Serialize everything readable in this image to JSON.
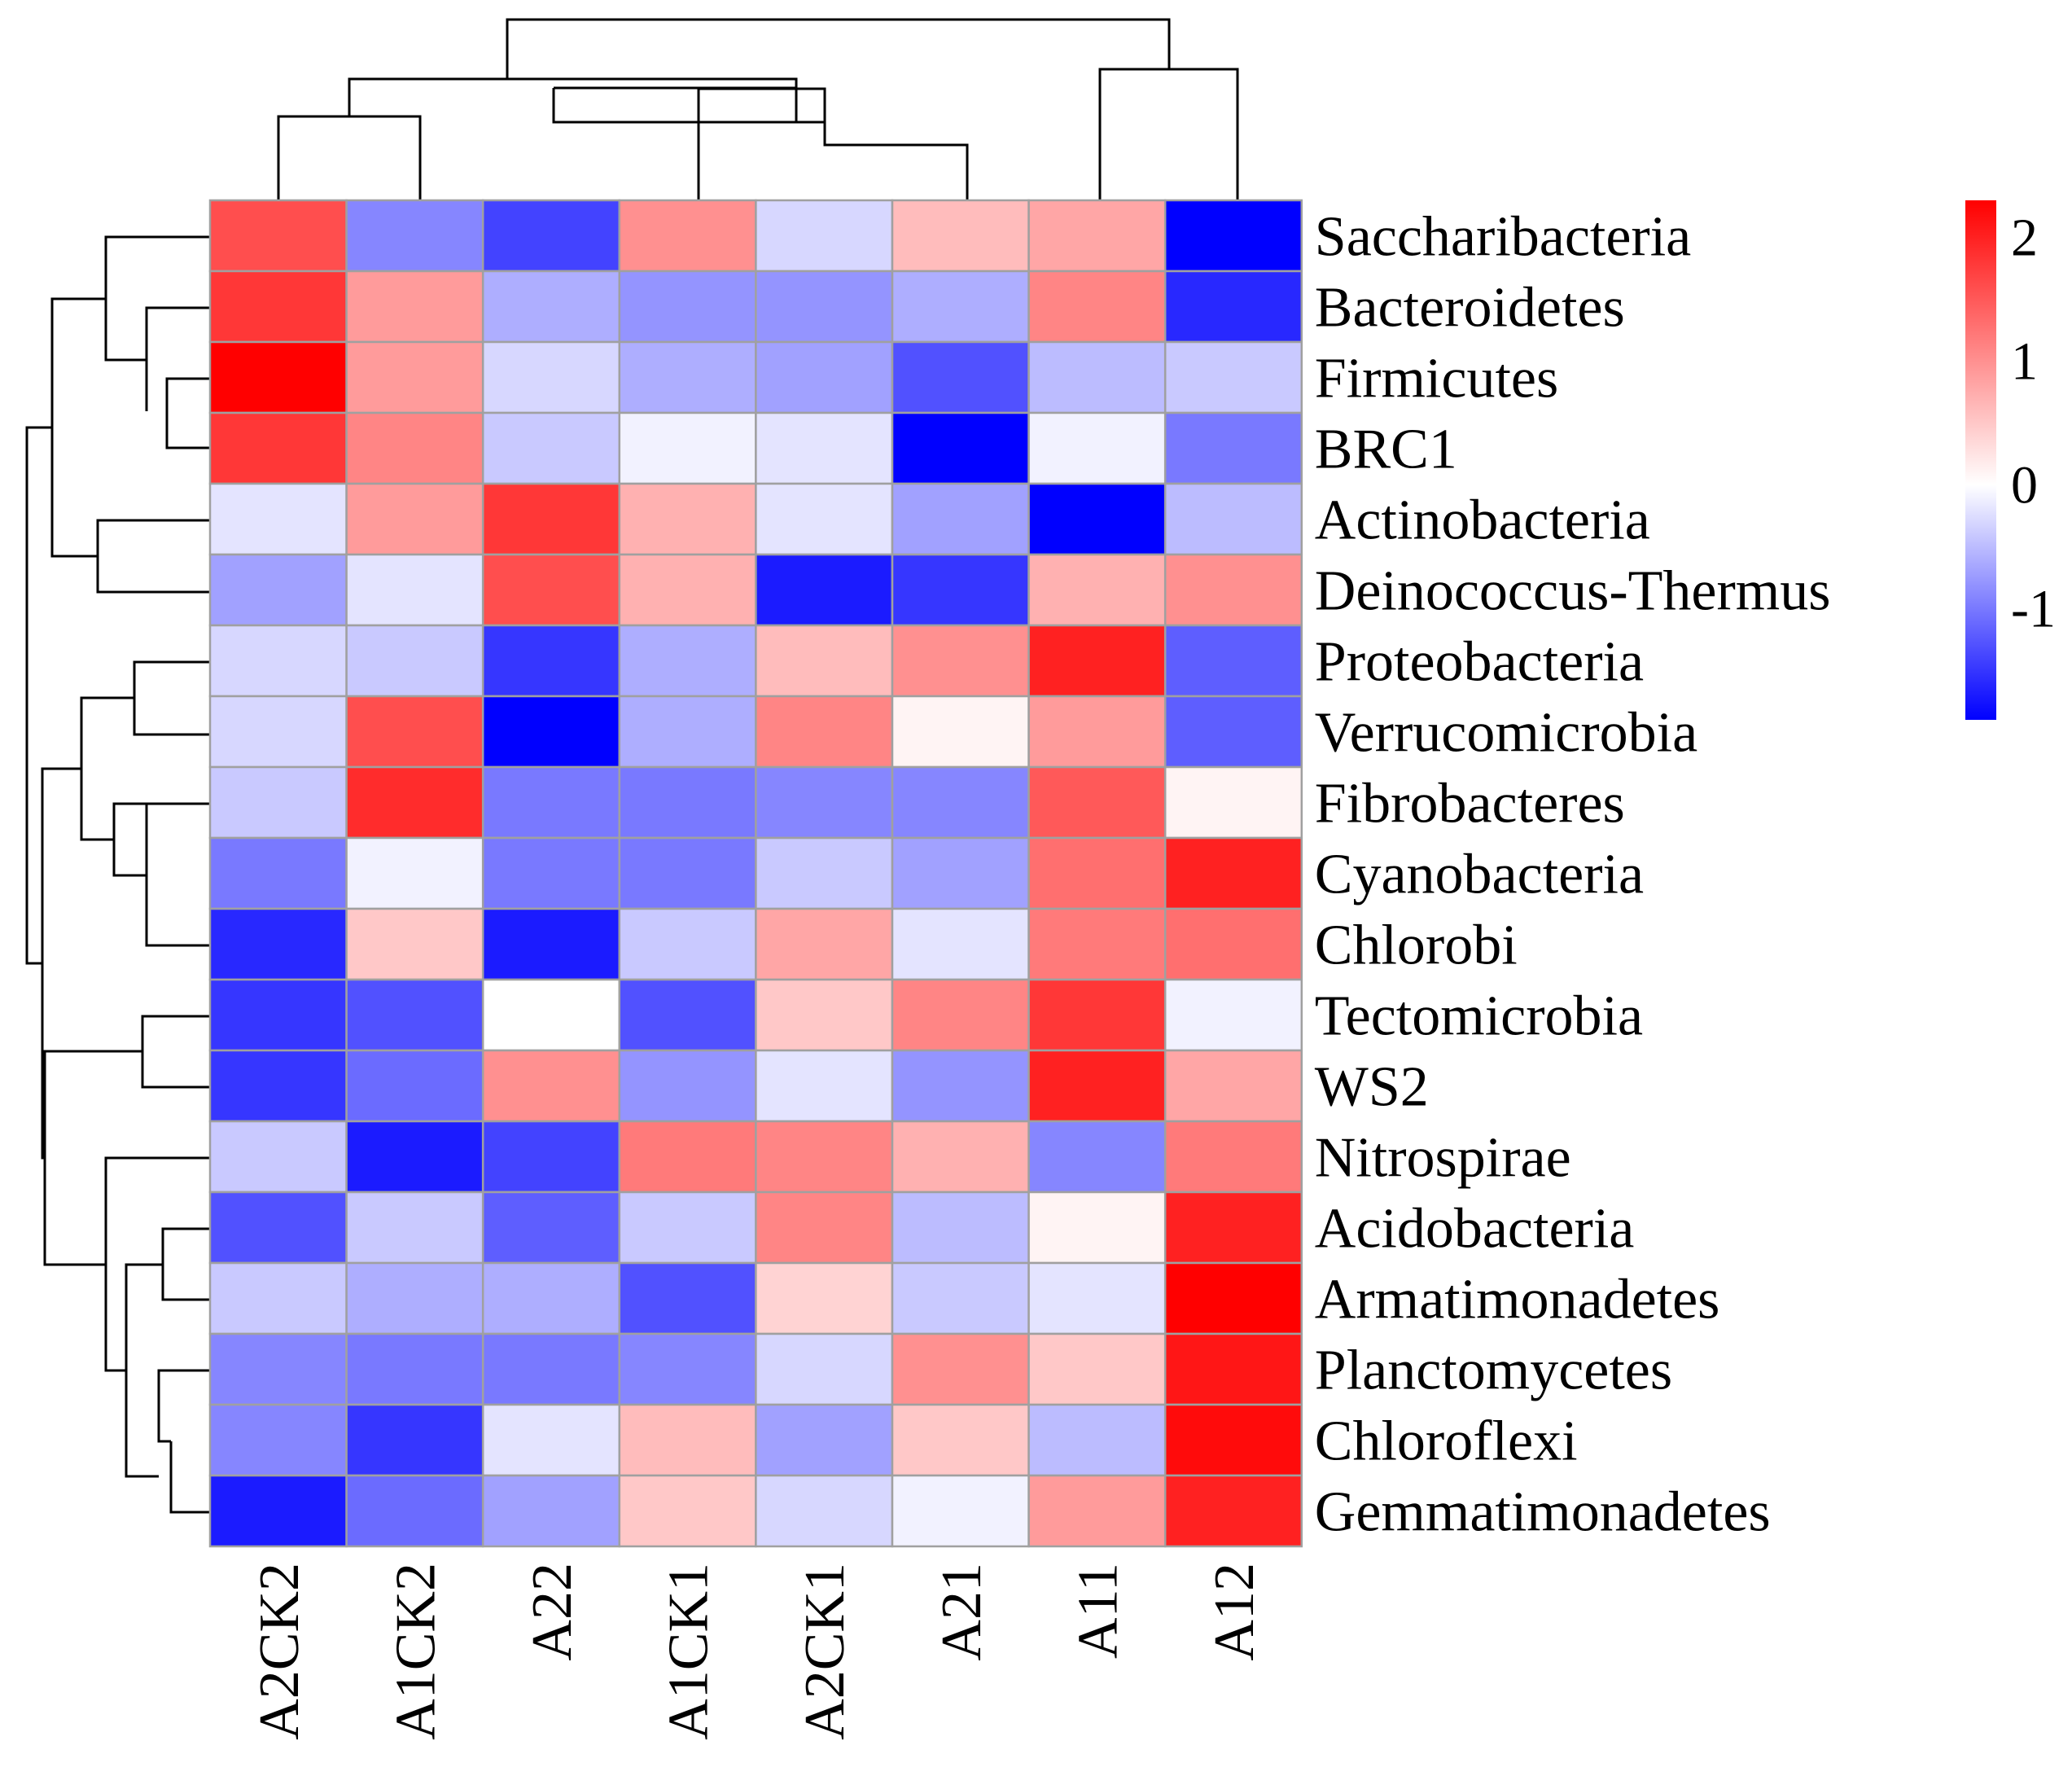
{
  "chart_data": {
    "type": "heatmap",
    "title": "",
    "columns": [
      "A2CK2",
      "A1CK2",
      "A22",
      "A1CK1",
      "A2CK1",
      "A21",
      "A11",
      "A12"
    ],
    "rows": [
      "Saccharibacteria",
      "Bacteroidetes",
      "Firmicutes",
      "BRC1",
      "Actinobacteria",
      "Deinococcus-Thermus",
      "Proteobacteria",
      "Verrucomicrobia",
      "Fibrobacteres",
      "Cyanobacteria",
      "Chlorobi",
      "Tectomicrobia",
      "WS2",
      "Nitrospirae",
      "Acidobacteria",
      "Armatimonadetes",
      "Planctomycetes",
      "Chloroflexi",
      "Gemmatimonadetes"
    ],
    "values": [
      [
        1.6,
        -0.9,
        -1.4,
        1.0,
        -0.3,
        0.6,
        0.8,
        -1.9
      ],
      [
        1.8,
        0.9,
        -0.6,
        -0.8,
        -0.8,
        -0.6,
        1.1,
        -1.6
      ],
      [
        2.3,
        0.9,
        -0.3,
        -0.6,
        -0.7,
        -1.3,
        -0.5,
        -0.4
      ],
      [
        1.8,
        1.1,
        -0.4,
        -0.1,
        -0.2,
        -1.9,
        -0.1,
        -1.0
      ],
      [
        -0.2,
        0.9,
        1.8,
        0.7,
        -0.2,
        -0.7,
        -1.9,
        -0.5
      ],
      [
        -0.7,
        -0.2,
        1.6,
        0.7,
        -1.7,
        -1.5,
        0.7,
        1.0
      ],
      [
        -0.3,
        -0.4,
        -1.5,
        -0.6,
        0.6,
        1.0,
        2.0,
        -1.2
      ],
      [
        -0.3,
        1.6,
        -1.9,
        -0.6,
        1.1,
        0.1,
        0.9,
        -1.2
      ],
      [
        -0.4,
        1.9,
        -1.0,
        -1.0,
        -0.9,
        -0.9,
        1.5,
        0.1
      ],
      [
        -1.0,
        -0.1,
        -1.0,
        -1.0,
        -0.4,
        -0.7,
        1.3,
        2.0
      ],
      [
        -1.6,
        0.5,
        -1.7,
        -0.4,
        0.8,
        -0.2,
        1.2,
        1.3
      ],
      [
        -1.5,
        -1.3,
        0.0,
        -1.3,
        0.5,
        1.1,
        1.8,
        -0.1
      ],
      [
        -1.5,
        -1.1,
        1.0,
        -0.8,
        -0.2,
        -0.8,
        2.0,
        0.8
      ],
      [
        -0.4,
        -1.7,
        -1.4,
        1.2,
        1.1,
        0.7,
        -0.9,
        1.2
      ],
      [
        -1.3,
        -0.4,
        -1.2,
        -0.4,
        1.1,
        -0.5,
        0.1,
        2.0
      ],
      [
        -0.4,
        -0.6,
        -0.6,
        -1.3,
        0.4,
        -0.4,
        -0.2,
        2.3
      ],
      [
        -0.9,
        -1.0,
        -1.0,
        -0.9,
        -0.3,
        1.0,
        0.5,
        2.1
      ],
      [
        -0.9,
        -1.5,
        -0.2,
        0.6,
        -0.7,
        0.5,
        -0.5,
        2.2
      ],
      [
        -1.7,
        -1.1,
        -0.7,
        0.5,
        -0.3,
        -0.1,
        0.9,
        2.0
      ]
    ],
    "scale": {
      "min": -1.9,
      "max": 2.3,
      "colors": {
        "low": "#0000ff",
        "mid": "#ffffff",
        "high": "#ff0000"
      },
      "ticks": [
        2,
        1,
        0,
        -1
      ],
      "tick_labels": [
        "2",
        "1",
        "0",
        "-1"
      ]
    },
    "cell_border_color": "#a0a0a0",
    "legend_position": "right",
    "column_dendrogram": "top",
    "row_dendrogram": "left"
  }
}
